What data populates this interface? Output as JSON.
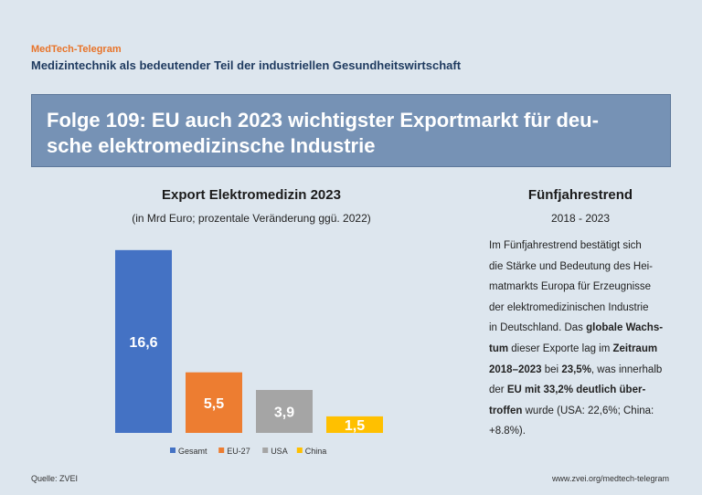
{
  "header": {
    "brand": "MedTech-Telegram",
    "subtitle": "Medizintechnik als bedeutender Teil der industriellen Gesundheitswirtschaft",
    "title_line1": "Folge 109: EU auch 2023 wichtigster Exportmarkt für deu-",
    "title_line2": "sche elektromedizinsche Industrie"
  },
  "chart_data": {
    "type": "bar",
    "title": "Export Elektromedizin 2023",
    "subtitle": "(in Mrd Euro; prozentale Veränderung ggü. 2022)",
    "categories": [
      "Gesamt",
      "EU-27",
      "USA",
      "China"
    ],
    "values": [
      16.6,
      5.5,
      3.9,
      1.5
    ],
    "value_labels": [
      "16,6",
      "5,5",
      "3,9",
      "1,5"
    ],
    "colors": [
      "#4472c4",
      "#ed7d31",
      "#a5a5a5",
      "#ffc000"
    ],
    "label_colors": [
      "#ffffff",
      "#ffffff",
      "#ffffff",
      "#ffffff"
    ],
    "legend": [
      "Gesamt",
      "EU-27",
      "USA",
      "China"
    ],
    "legend_position": "bottom",
    "ylim": [
      0,
      17
    ],
    "grid": false
  },
  "trend": {
    "title": "Fünfjahrestrend",
    "period": "2018 - 2023",
    "lines": [
      [
        {
          "t": "Im Fünfjahrestrend bestätigt sich",
          "b": false
        }
      ],
      [
        {
          "t": "die Stärke und Bedeutung des Hei-",
          "b": false
        }
      ],
      [
        {
          "t": "matmarkts Europa für Erzeugnisse",
          "b": false
        }
      ],
      [
        {
          "t": "der elektromedizinischen Industrie",
          "b": false
        }
      ],
      [
        {
          "t": "in Deutschland. Das ",
          "b": false
        },
        {
          "t": "globale Wachs-",
          "b": true
        }
      ],
      [
        {
          "t": "tum",
          "b": true
        },
        {
          "t": " dieser Exporte lag im ",
          "b": false
        },
        {
          "t": "Zeitraum",
          "b": true
        }
      ],
      [
        {
          "t": "2018–2023",
          "b": true
        },
        {
          "t": " bei ",
          "b": false
        },
        {
          "t": "23,5%",
          "b": true
        },
        {
          "t": ", was innerhalb",
          "b": false
        }
      ],
      [
        {
          "t": "der ",
          "b": false
        },
        {
          "t": "EU mit 33,2% deutlich über-",
          "b": true
        }
      ],
      [
        {
          "t": "troffen",
          "b": true
        },
        {
          "t": " wurde (USA: 22,6%; China:",
          "b": false
        }
      ],
      [
        {
          "t": "+8.8%).",
          "b": false
        }
      ]
    ]
  },
  "footer": {
    "source": "Quelle: ZVEI",
    "url": "www.zvei.org/medtech-telegram"
  }
}
